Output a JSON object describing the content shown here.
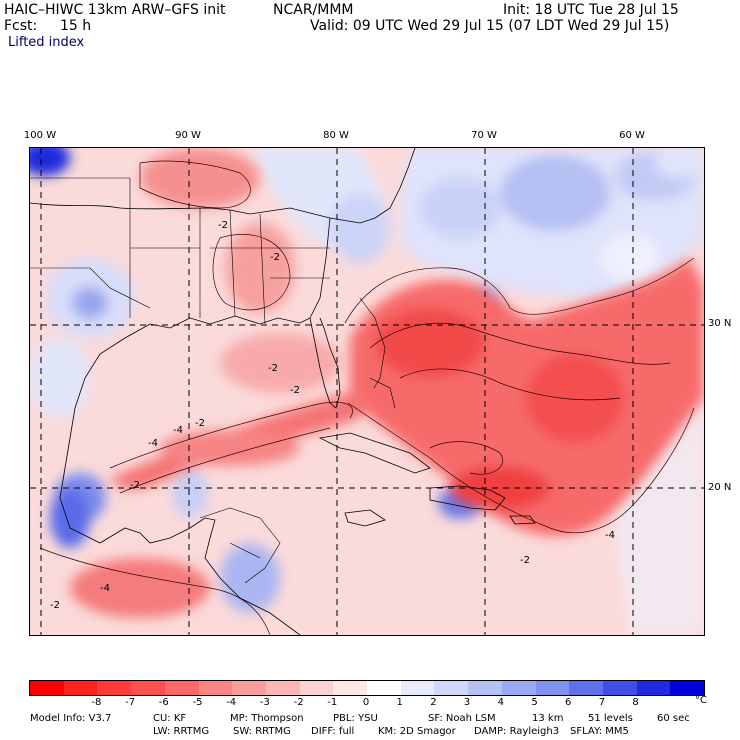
{
  "header": {
    "model_title": "HAIC–HIWC 13km ARW–GFS init",
    "org": "NCAR/MMM",
    "init": "Init: 18 UTC Tue 28 Jul 15",
    "fcst_label": "Fcst:",
    "fcst_value": "15 h",
    "valid": "Valid: 09 UTC Wed 29 Jul 15 (07 LDT Wed 29 Jul 15)",
    "field": "Lifted index"
  },
  "map": {
    "lon_labels": [
      "100 W",
      "90 W",
      "80 W",
      "70 W",
      "60 W"
    ],
    "lat_labels": [
      "30 N",
      "20 N"
    ],
    "contour_labels": [
      "-2",
      "-2",
      "-2",
      "-4",
      "-4",
      "-2",
      "-2",
      "-2",
      "-2",
      "-4",
      "-2",
      "-4"
    ]
  },
  "colorbar": {
    "ticks": [
      "-8",
      "-7",
      "-6",
      "-5",
      "-4",
      "-3",
      "-2",
      "-1",
      "0",
      "1",
      "2",
      "3",
      "4",
      "5",
      "6",
      "7",
      "8"
    ],
    "unit": "°C",
    "colors": [
      "#ff0000",
      "#ff2020",
      "#ff3a3a",
      "#ff5050",
      "#fc6a6a",
      "#fa8484",
      "#f89c9c",
      "#f8b6b6",
      "#fad0d0",
      "#fde8e8",
      "#ffffff",
      "#e8ecfc",
      "#d0d8fa",
      "#b6c2f6",
      "#9aaaf2",
      "#7e92ee",
      "#6070ea",
      "#4050e6",
      "#2028e2",
      "#0000dd"
    ]
  },
  "footer": {
    "line1": [
      "Model Info: V3.7",
      "CU: KF",
      "MP: Thompson",
      "PBL: YSU",
      "SF: Noah LSM",
      "13 km",
      "51 levels",
      "60 sec"
    ],
    "line2": [
      "LW: RRTMG",
      "SW: RRTMG",
      "DIFF: full",
      "KM: 2D Smagor",
      "DAMP: Rayleigh3",
      "SFLAY: MM5"
    ]
  }
}
